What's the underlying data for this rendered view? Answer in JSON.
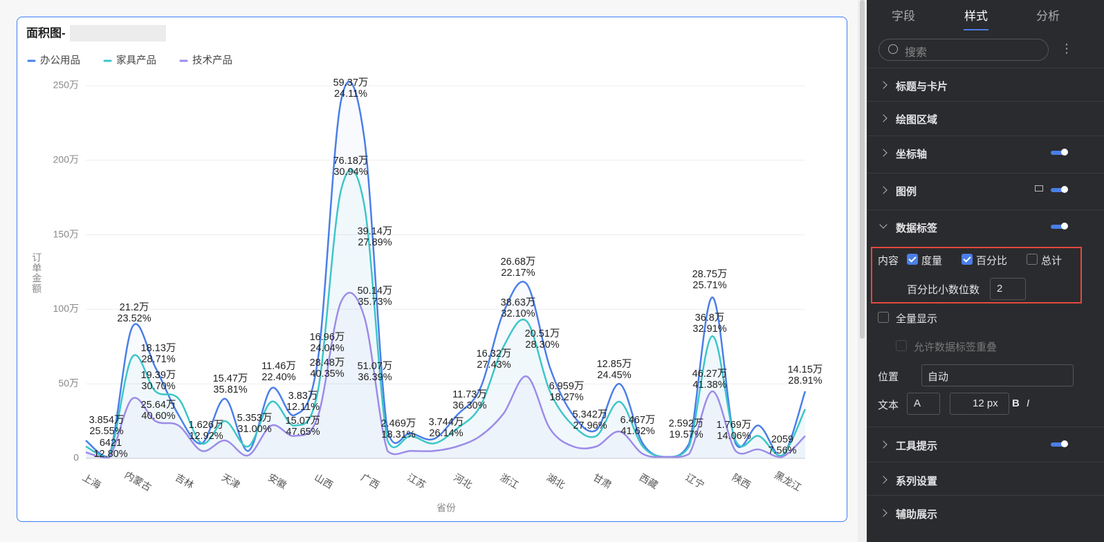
{
  "chart_data": {
    "type": "line",
    "title": "面积图-",
    "x_label": "省份",
    "y_label": "订单金额",
    "categories": [
      "上海",
      null,
      "内蒙古",
      null,
      "吉林",
      null,
      "天津",
      null,
      "安徽",
      null,
      "山西",
      null,
      "广西",
      null,
      "江苏",
      null,
      "河北",
      null,
      "浙江",
      null,
      "湖北",
      null,
      "甘肃",
      null,
      "西藏",
      null,
      "辽宁",
      null,
      "陕西",
      null,
      "黑龙江",
      null
    ],
    "ylim": [
      0,
      2500000
    ],
    "yticks": [
      0,
      {
        "value": 500000,
        "label": "50万"
      },
      {
        "value": 1000000,
        "label": "100万"
      },
      {
        "value": 1500000,
        "label": "150万"
      },
      {
        "value": 2000000,
        "label": "200万"
      },
      {
        "value": 2500000,
        "label": "250万"
      }
    ],
    "grid": true,
    "legend": "top-left",
    "series": [
      {
        "name": "办公用品",
        "color": "#4a7ee8",
        "values": [
          120000,
          10000,
          880000,
          610000,
          290000,
          100000,
          400000,
          50000,
          470000,
          290000,
          660000,
          2400000,
          2150000,
          190000,
          170000,
          130000,
          290000,
          470000,
          980000,
          1170000,
          610000,
          290000,
          190000,
          500000,
          100000,
          10000,
          100000,
          1080000,
          100000,
          220000,
          10000,
          450000
        ]
      },
      {
        "name": "家具产品",
        "color": "#3cc6c8",
        "values": [
          80000,
          10000,
          680000,
          450000,
          400000,
          100000,
          250000,
          80000,
          380000,
          220000,
          450000,
          1800000,
          1700000,
          120000,
          150000,
          100000,
          200000,
          350000,
          750000,
          920000,
          450000,
          220000,
          150000,
          380000,
          80000,
          10000,
          80000,
          820000,
          120000,
          150000,
          20000,
          330000
        ]
      },
      {
        "name": "技术产品",
        "color": "#9d8be8",
        "values": [
          40000,
          5000,
          400000,
          250000,
          220000,
          50000,
          120000,
          20000,
          220000,
          150000,
          280000,
          1050000,
          950000,
          50000,
          50000,
          50000,
          80000,
          150000,
          300000,
          550000,
          200000,
          80000,
          80000,
          180000,
          30000,
          10000,
          30000,
          450000,
          50000,
          60000,
          10000,
          150000
        ]
      }
    ],
    "data_labels": [
      [
        "3.854万",
        "25.55%"
      ],
      [
        "6421",
        "12.80%"
      ],
      [
        "21.2万",
        "23.52%"
      ],
      [
        "18.13万",
        "28.71%"
      ],
      [
        "19.39万",
        "30.70%"
      ],
      [
        "25.64万",
        "40.60%"
      ],
      [
        "1.626万",
        "12.92%"
      ],
      [
        "15.47万",
        "35.81%"
      ],
      [
        "5.353万",
        "31.00%"
      ],
      [
        "11.46万",
        "22.40%"
      ],
      [
        "3.83万",
        "12.11%"
      ],
      [
        "15.07万",
        "47.65%"
      ],
      [
        "16.96万",
        "24.04%"
      ],
      [
        "28.48万",
        "40.35%"
      ],
      [
        "59.37万",
        "24.11%"
      ],
      [
        "76.18万",
        "30.94%"
      ],
      [
        "39.14万",
        "27.89%"
      ],
      [
        "50.14万",
        "35.73%"
      ],
      [
        "51.07万",
        "36.39%"
      ],
      [
        "2.469万",
        "18.31%"
      ],
      [
        "3.744万",
        "26.14%"
      ],
      [
        "11.73万",
        "36.30%"
      ],
      [
        "16.32万",
        "27.43%"
      ],
      [
        "26.68万",
        "22.17%"
      ],
      [
        "38.63万",
        "32.10%"
      ],
      [
        "20.51万",
        "28.30%"
      ],
      [
        "6.959万",
        "18.27%"
      ],
      [
        "5.342万",
        "27.96%"
      ],
      [
        "12.85万",
        "24.45%"
      ],
      [
        "6.467万",
        "41.62%"
      ],
      [
        "2.592万",
        "19.57%"
      ],
      [
        "1.769万",
        "14.06%"
      ],
      [
        "28.75万",
        "25.71%"
      ],
      [
        "36.8万",
        "32.91%"
      ],
      [
        "46.27万",
        "41.38%"
      ],
      [
        "2059",
        "7.56%"
      ],
      [
        "14.15万",
        "28.91%"
      ]
    ]
  },
  "panel": {
    "tabs": [
      "字段",
      "样式",
      "分析"
    ],
    "search_placeholder": "搜索",
    "sections": [
      "标题与卡片",
      "绘图区域",
      "坐标轴",
      "图例",
      "数据标签"
    ],
    "content_label": "内容",
    "options": [
      "度量",
      "百分比",
      "总计"
    ],
    "decimal_label": "百分比小数位数",
    "decimal_value": "2",
    "full_display": "全量显示",
    "allow_overlap": "允许数据标签重叠",
    "position_label": "位置",
    "position_value": "自动",
    "text_label": "文本",
    "font_icon": "A",
    "font_size": "12 px",
    "bold": "B",
    "italic": "I",
    "more_sections": [
      "工具提示",
      "系列设置",
      "辅助展示"
    ]
  }
}
